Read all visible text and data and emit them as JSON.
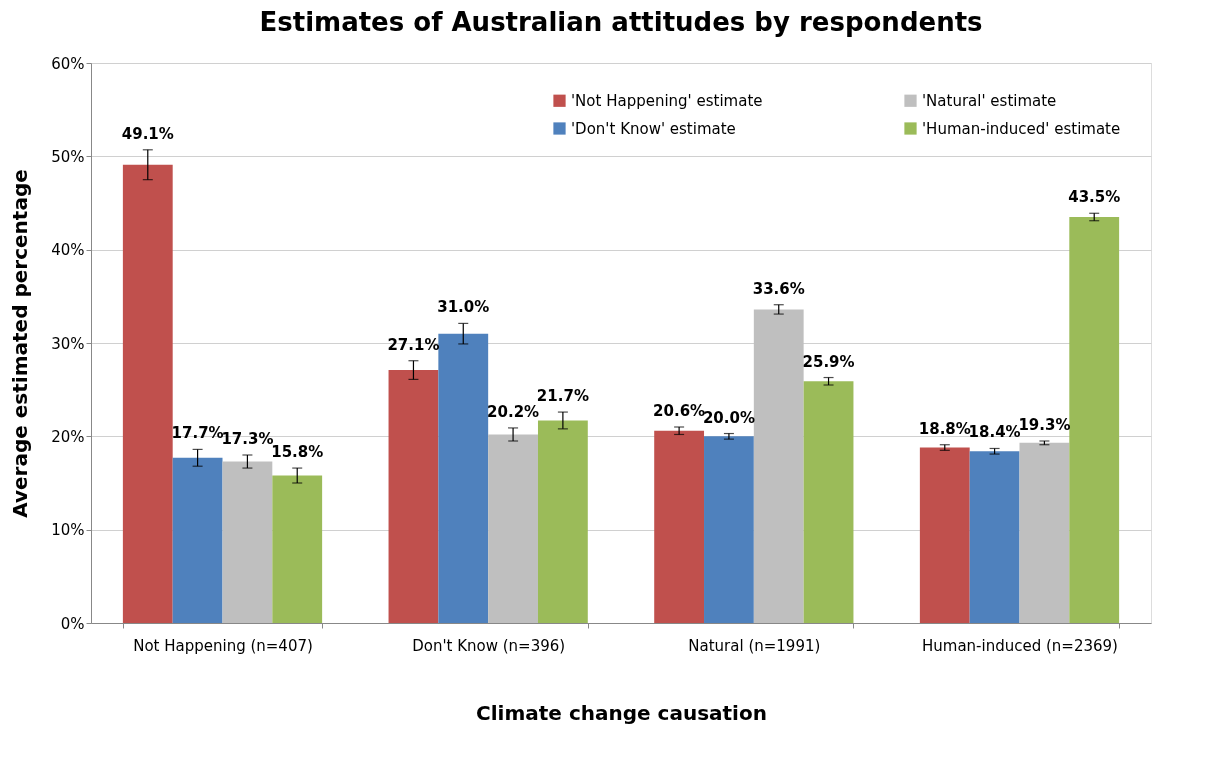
{
  "chart_data": {
    "type": "bar",
    "title": "Estimates of Australian attitudes by respondents",
    "xlabel": "Climate change causation",
    "ylabel": "Average estimated percentage",
    "categories": [
      "Not Happening (n=407)",
      "Don't Know (n=396)",
      "Natural (n=1991)",
      "Human-induced (n=2369)"
    ],
    "series": [
      {
        "name": "'Not Happening' estimate",
        "color": "#c0504d",
        "values": [
          49.1,
          27.1,
          20.6,
          18.8
        ],
        "errors": [
          1.6,
          1.0,
          0.4,
          0.3
        ],
        "value_labels": [
          "49.1%",
          "27.1%",
          "20.6%",
          "18.8%"
        ]
      },
      {
        "name": "'Don't Know' estimate",
        "color": "#4f81bd",
        "values": [
          17.7,
          31.0,
          20.0,
          18.4
        ],
        "errors": [
          0.9,
          1.1,
          0.3,
          0.3
        ],
        "value_labels": [
          "17.7%",
          "31.0%",
          "20.0%",
          "18.4%"
        ]
      },
      {
        "name": "'Natural' estimate",
        "color": "#bfbfbf",
        "values": [
          17.3,
          20.2,
          33.6,
          19.3
        ],
        "errors": [
          0.7,
          0.7,
          0.5,
          0.2
        ],
        "value_labels": [
          "17.3%",
          "20.2%",
          "33.6%",
          "19.3%"
        ]
      },
      {
        "name": "'Human-induced' estimate",
        "color": "#9bbb59",
        "values": [
          15.8,
          21.7,
          25.9,
          43.5
        ],
        "errors": [
          0.8,
          0.9,
          0.4,
          0.4
        ],
        "value_labels": [
          "15.8%",
          "21.7%",
          "25.9%",
          "43.5%"
        ]
      }
    ],
    "ylim": [
      0,
      60
    ],
    "yticks": [
      {
        "value": 0,
        "label": "0%"
      },
      {
        "value": 10,
        "label": "10%"
      },
      {
        "value": 20,
        "label": "20%"
      },
      {
        "value": 30,
        "label": "30%"
      },
      {
        "value": 40,
        "label": "40%"
      },
      {
        "value": 50,
        "label": "50%"
      },
      {
        "value": 60,
        "label": "60%"
      }
    ],
    "grid": "y",
    "legend": "top right"
  }
}
